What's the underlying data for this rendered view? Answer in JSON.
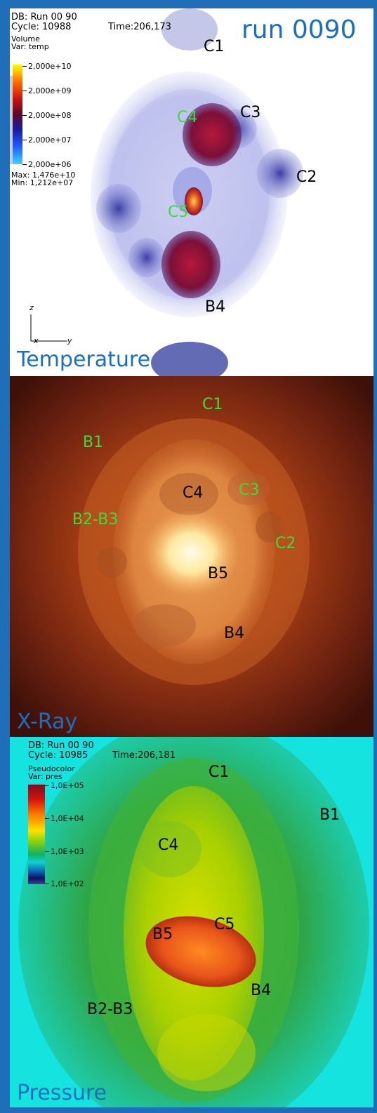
{
  "run_title": "run 0090",
  "temperature_panel": {
    "title": "Temperature",
    "db": "DB: Run 00 90",
    "cycle": "Cycle: 10988",
    "time": "Time:206,173",
    "plot_type": "Volume",
    "var": "Var: temp",
    "ticks": [
      "2,000e+10",
      "2,000e+09",
      "2,000e+08",
      "2,000e+07",
      "2,000e+06"
    ],
    "max": "Max: 1,476e+10",
    "min": "Min: 1,212e+07",
    "axis": {
      "z": "z",
      "x": "x",
      "y": "y"
    },
    "labels": {
      "c1": "C1",
      "c3": "C3",
      "c4": "C4",
      "c2": "C2",
      "c5": "C5",
      "b4": "B4"
    }
  },
  "xray_panel": {
    "title": "X-Ray",
    "labels": {
      "c1": "C1",
      "b1": "B1",
      "c4": "C4",
      "c3": "C3",
      "b2b3": "B2-B3",
      "c2": "C2",
      "b5": "B5",
      "b4": "B4"
    }
  },
  "pressure_panel": {
    "title": "Pressure",
    "db": "DB: Run 00 90",
    "cycle": "Cycle: 10985",
    "time": "Time:206,181",
    "plot_type": "Pseudocolor",
    "var": "Var: pres",
    "ticks": [
      "1,0E+05",
      "1,0E+04",
      "1,0E+03",
      "1,0E+02"
    ],
    "labels": {
      "c1": "C1",
      "b1": "B1",
      "c4": "C4",
      "c5": "C5",
      "b5": "B5",
      "b4": "B4",
      "b2b3": "B2-B3"
    }
  },
  "colors": {
    "frame": "#1e6fb8",
    "title_blue": "#1b6fbf",
    "label_green": "#3ddc3d"
  }
}
